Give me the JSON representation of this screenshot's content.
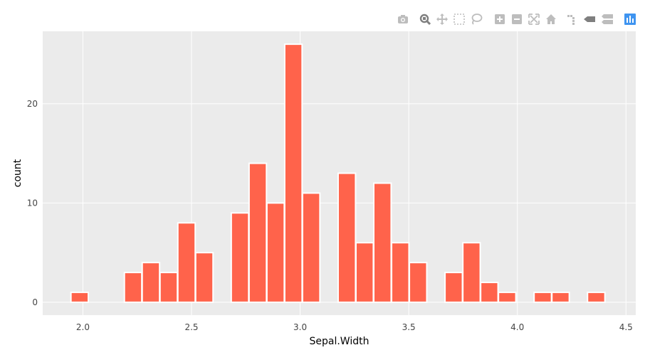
{
  "modebar": {
    "icons": [
      "camera-icon",
      "zoom-icon",
      "pan-icon",
      "box-select-icon",
      "lasso-select-icon",
      "zoom-in-icon",
      "zoom-out-icon",
      "autoscale-icon",
      "reset-axes-icon",
      "spike-lines-icon",
      "hover-closest-icon",
      "hover-compare-icon",
      "plotly-logo-icon"
    ]
  },
  "chart_data": {
    "type": "bar",
    "title": "",
    "xlabel": "Sepal.Width",
    "ylabel": "count",
    "bin_width": 0.08,
    "bins": [
      {
        "x": 1.985,
        "count": 1
      },
      {
        "x": 2.231,
        "count": 3
      },
      {
        "x": 2.313,
        "count": 4
      },
      {
        "x": 2.395,
        "count": 3
      },
      {
        "x": 2.477,
        "count": 8
      },
      {
        "x": 2.559,
        "count": 5
      },
      {
        "x": 2.723,
        "count": 9
      },
      {
        "x": 2.805,
        "count": 14
      },
      {
        "x": 2.887,
        "count": 10
      },
      {
        "x": 2.969,
        "count": 26
      },
      {
        "x": 3.051,
        "count": 11
      },
      {
        "x": 3.215,
        "count": 13
      },
      {
        "x": 3.297,
        "count": 6
      },
      {
        "x": 3.379,
        "count": 12
      },
      {
        "x": 3.461,
        "count": 6
      },
      {
        "x": 3.543,
        "count": 4
      },
      {
        "x": 3.707,
        "count": 3
      },
      {
        "x": 3.789,
        "count": 6
      },
      {
        "x": 3.871,
        "count": 2
      },
      {
        "x": 3.953,
        "count": 1
      },
      {
        "x": 4.117,
        "count": 1
      },
      {
        "x": 4.199,
        "count": 1
      },
      {
        "x": 4.363,
        "count": 1
      }
    ],
    "xlim": [
      1.815,
      4.545
    ],
    "ylim": [
      -1.3,
      27.3
    ],
    "xticks": [
      {
        "value": 2.0,
        "label": "2.0"
      },
      {
        "value": 2.5,
        "label": "2.5"
      },
      {
        "value": 3.0,
        "label": "3.0"
      },
      {
        "value": 3.5,
        "label": "3.5"
      },
      {
        "value": 4.0,
        "label": "4.0"
      },
      {
        "value": 4.5,
        "label": "4.5"
      }
    ],
    "yticks": [
      {
        "value": 0,
        "label": "0"
      },
      {
        "value": 10,
        "label": "10"
      },
      {
        "value": 20,
        "label": "20"
      }
    ],
    "grid": true,
    "legend": "none",
    "colors": {
      "bar_fill": "#ff634b",
      "bar_border": "#ffffff",
      "panel_bg": "#ebebeb",
      "grid": "#ffffff",
      "tick_text": "#444444",
      "modebar_icon": "#bdbdbd",
      "modebar_active": "#7f7f7f",
      "plotly_logo": "#3f94f0"
    }
  }
}
